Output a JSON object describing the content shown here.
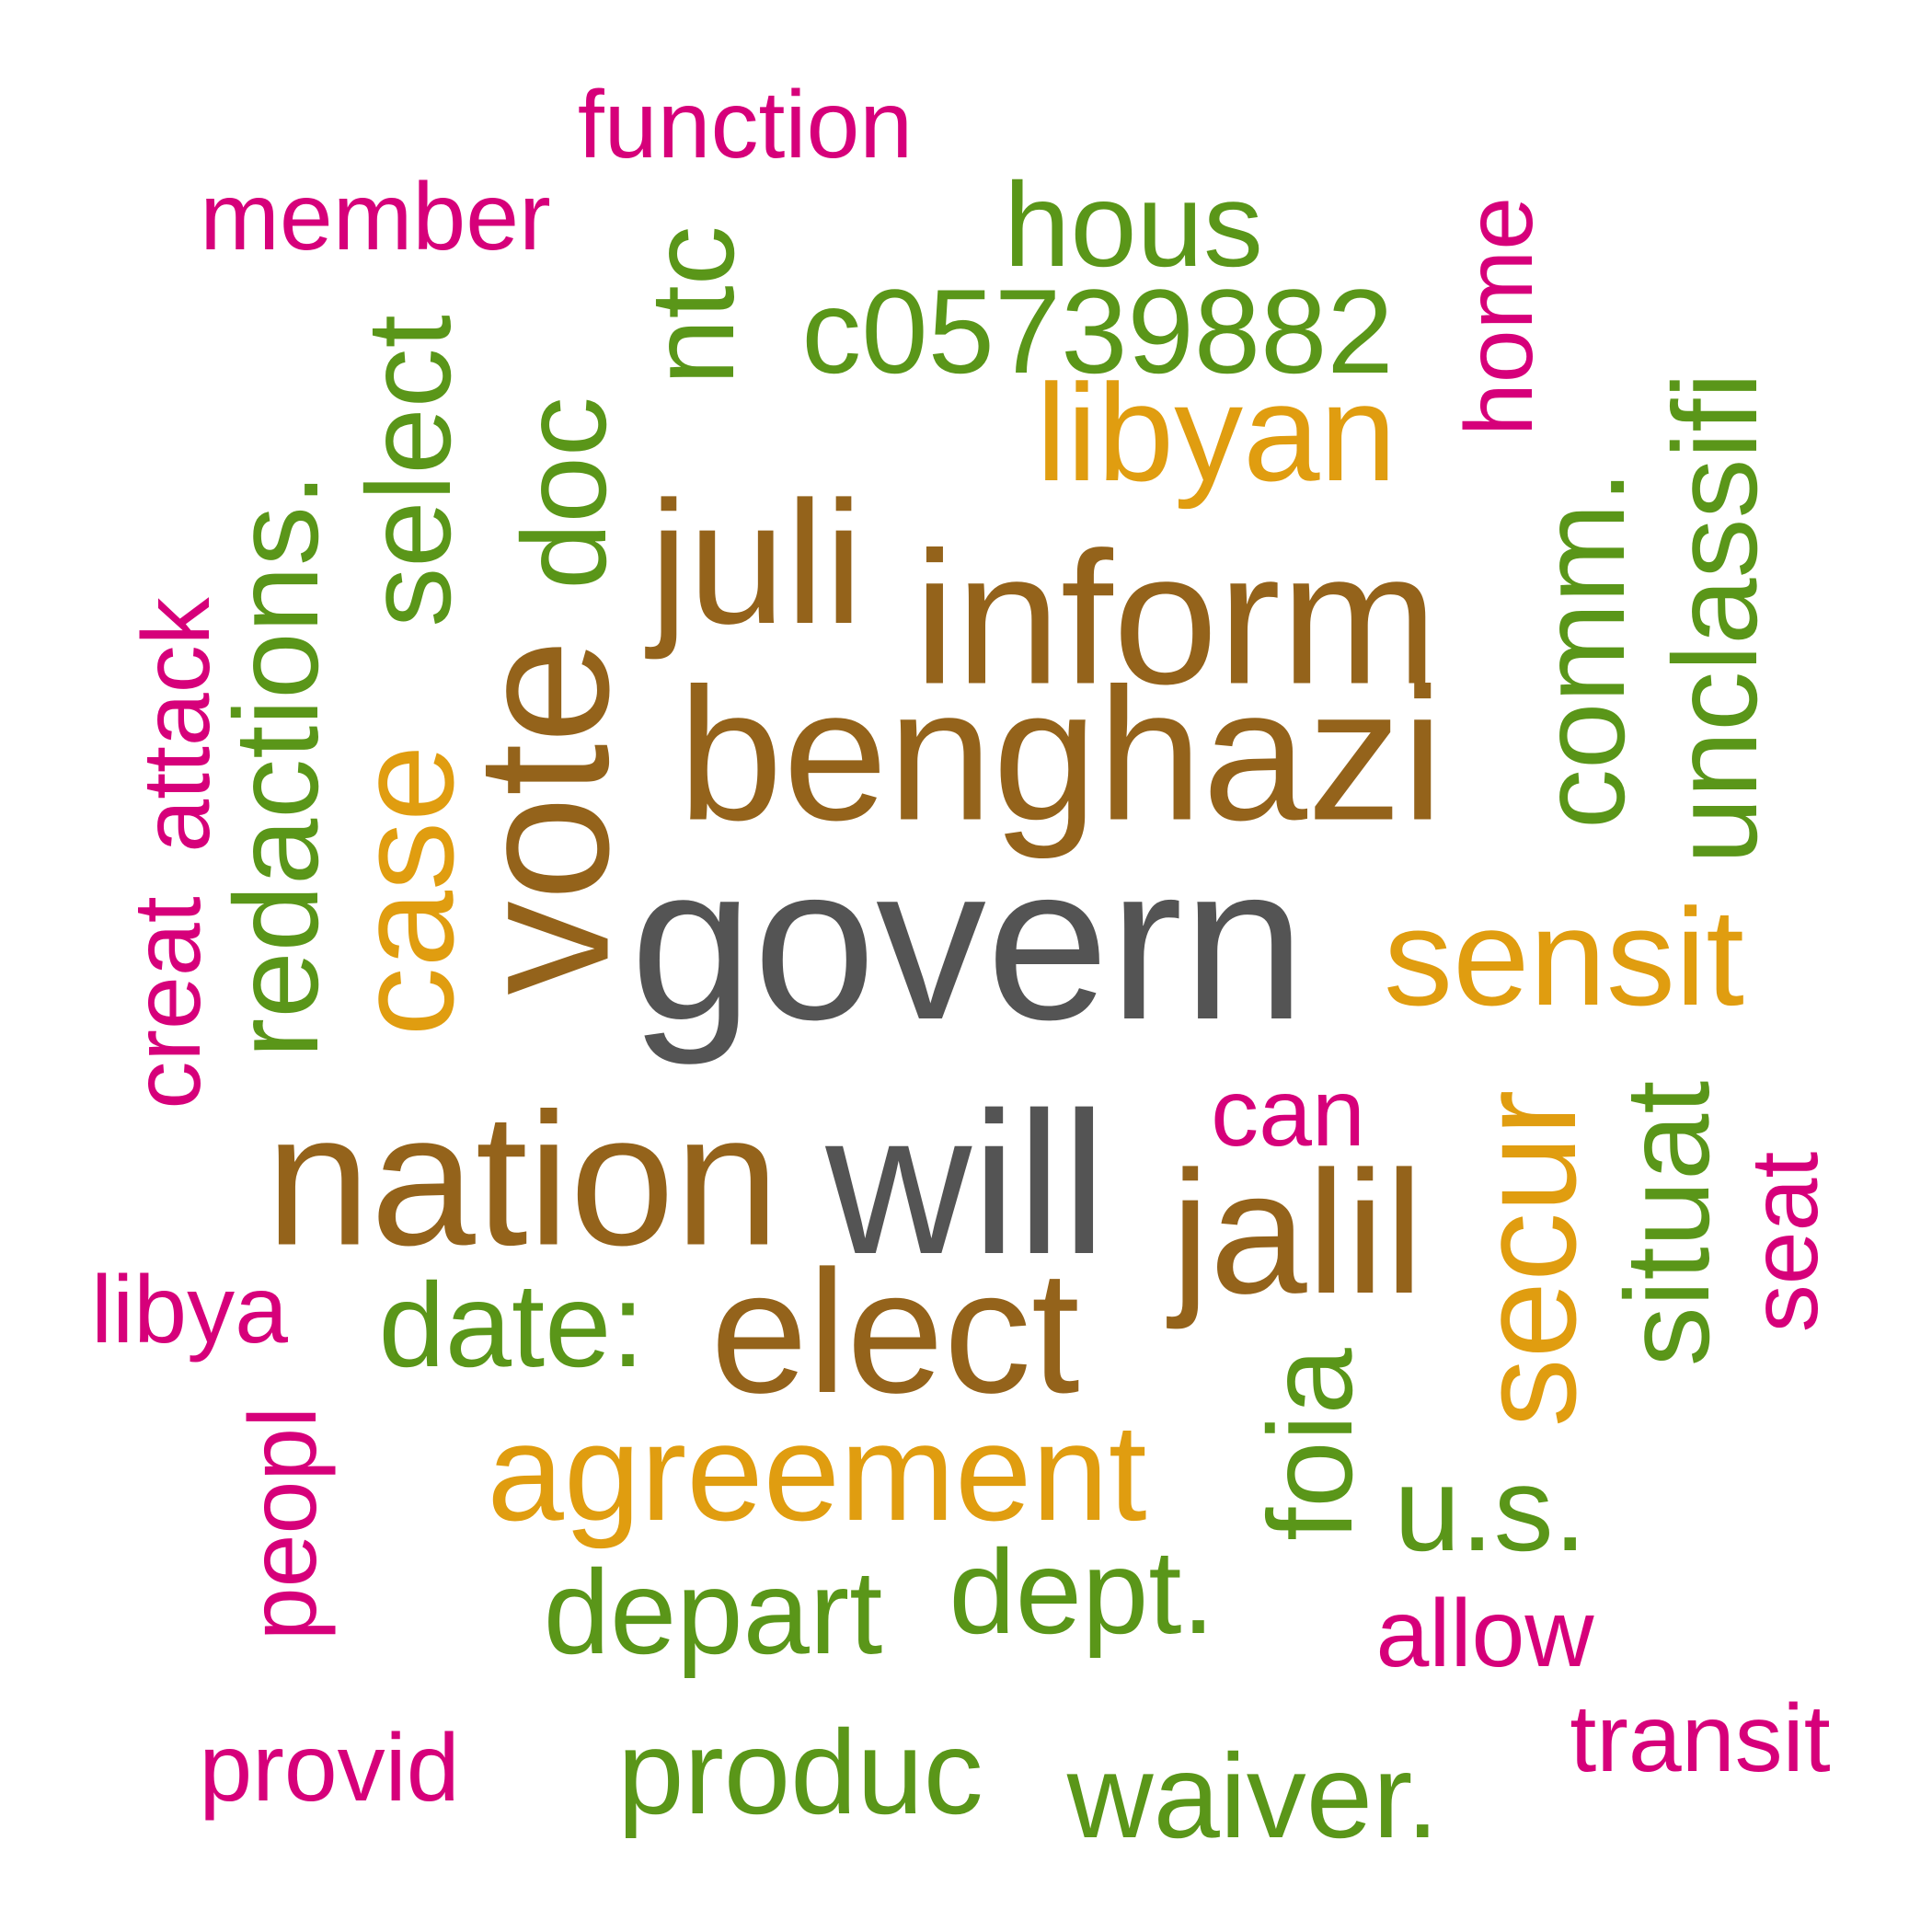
{
  "palette": {
    "gray": "#545454",
    "brown": "#94631B",
    "gold": "#E09D10",
    "green": "#5A9619",
    "magenta": "#D6007A"
  },
  "words": [
    {
      "id": "govern",
      "text": "govern",
      "color_key": "gray",
      "tier": 1,
      "orientation": "horizontal"
    },
    {
      "id": "will",
      "text": "will",
      "color_key": "gray",
      "tier": 2,
      "orientation": "horizontal"
    },
    {
      "id": "benghazi",
      "text": "benghazi",
      "color_key": "brown",
      "tier": 2,
      "orientation": "horizontal"
    },
    {
      "id": "nation",
      "text": "nation",
      "color_key": "brown",
      "tier": 2,
      "orientation": "horizontal"
    },
    {
      "id": "inform",
      "text": "inform",
      "color_key": "brown",
      "tier": 2,
      "orientation": "horizontal"
    },
    {
      "id": "vote",
      "text": "vote",
      "color_key": "brown",
      "tier": 2,
      "orientation": "vertical"
    },
    {
      "id": "juli",
      "text": "juli",
      "color_key": "brown",
      "tier": 3,
      "orientation": "horizontal"
    },
    {
      "id": "jalil",
      "text": "jalil",
      "color_key": "brown",
      "tier": 3,
      "orientation": "horizontal"
    },
    {
      "id": "elect",
      "text": "elect",
      "color_key": "brown",
      "tier": 3,
      "orientation": "horizontal"
    },
    {
      "id": "libyan",
      "text": "libyan",
      "color_key": "gold",
      "tier": 4,
      "orientation": "horizontal"
    },
    {
      "id": "sensit",
      "text": "sensit",
      "color_key": "gold",
      "tier": 4,
      "orientation": "horizontal"
    },
    {
      "id": "agreement",
      "text": "agreement",
      "color_key": "gold",
      "tier": 4,
      "orientation": "horizontal"
    },
    {
      "id": "case",
      "text": "case",
      "color_key": "gold",
      "tier": 4,
      "orientation": "vertical"
    },
    {
      "id": "secur",
      "text": "secur",
      "color_key": "gold",
      "tier": 4,
      "orientation": "vertical"
    },
    {
      "id": "c05739882",
      "text": "c05739882",
      "color_key": "green",
      "tier": 5,
      "orientation": "horizontal"
    },
    {
      "id": "hous",
      "text": "hous",
      "color_key": "green",
      "tier": 5,
      "orientation": "horizontal"
    },
    {
      "id": "ntc",
      "text": "ntc",
      "color_key": "green",
      "tier": 5,
      "orientation": "vertical"
    },
    {
      "id": "doc",
      "text": "doc",
      "color_key": "green",
      "tier": 5,
      "orientation": "vertical"
    },
    {
      "id": "select",
      "text": "select",
      "color_key": "green",
      "tier": 5,
      "orientation": "vertical"
    },
    {
      "id": "redactions",
      "text": "redactions.",
      "color_key": "green",
      "tier": 5,
      "orientation": "vertical"
    },
    {
      "id": "comm",
      "text": "comm.",
      "color_key": "green",
      "tier": 5,
      "orientation": "vertical"
    },
    {
      "id": "unclassifi",
      "text": "unclassifi",
      "color_key": "green",
      "tier": 5,
      "orientation": "vertical"
    },
    {
      "id": "situat",
      "text": "situat",
      "color_key": "green",
      "tier": 5,
      "orientation": "vertical"
    },
    {
      "id": "date",
      "text": "date:",
      "color_key": "green",
      "tier": 5,
      "orientation": "horizontal"
    },
    {
      "id": "foia",
      "text": "foia",
      "color_key": "green",
      "tier": 5,
      "orientation": "vertical"
    },
    {
      "id": "us",
      "text": "u.s.",
      "color_key": "green",
      "tier": 5,
      "orientation": "horizontal"
    },
    {
      "id": "depart",
      "text": "depart",
      "color_key": "green",
      "tier": 5,
      "orientation": "horizontal"
    },
    {
      "id": "dept",
      "text": "dept.",
      "color_key": "green",
      "tier": 5,
      "orientation": "horizontal"
    },
    {
      "id": "produc",
      "text": "produc",
      "color_key": "green",
      "tier": 5,
      "orientation": "horizontal"
    },
    {
      "id": "waiver",
      "text": "waiver.",
      "color_key": "green",
      "tier": 5,
      "orientation": "horizontal"
    },
    {
      "id": "function",
      "text": "function",
      "color_key": "magenta",
      "tier": 6,
      "orientation": "horizontal"
    },
    {
      "id": "member",
      "text": "member",
      "color_key": "magenta",
      "tier": 6,
      "orientation": "horizontal"
    },
    {
      "id": "home",
      "text": "home",
      "color_key": "magenta",
      "tier": 6,
      "orientation": "vertical"
    },
    {
      "id": "attack",
      "text": "attack",
      "color_key": "magenta",
      "tier": 6,
      "orientation": "vertical"
    },
    {
      "id": "creat",
      "text": "creat",
      "color_key": "magenta",
      "tier": 6,
      "orientation": "vertical"
    },
    {
      "id": "can",
      "text": "can",
      "color_key": "magenta",
      "tier": 6,
      "orientation": "horizontal"
    },
    {
      "id": "seat",
      "text": "seat",
      "color_key": "magenta",
      "tier": 6,
      "orientation": "vertical"
    },
    {
      "id": "libya",
      "text": "libya",
      "color_key": "magenta",
      "tier": 6,
      "orientation": "horizontal"
    },
    {
      "id": "peopl",
      "text": "peopl",
      "color_key": "magenta",
      "tier": 6,
      "orientation": "vertical"
    },
    {
      "id": "allow",
      "text": "allow",
      "color_key": "magenta",
      "tier": 6,
      "orientation": "horizontal"
    },
    {
      "id": "transit",
      "text": "transit",
      "color_key": "magenta",
      "tier": 6,
      "orientation": "horizontal"
    },
    {
      "id": "provid",
      "text": "provid",
      "color_key": "magenta",
      "tier": 6,
      "orientation": "horizontal"
    }
  ]
}
